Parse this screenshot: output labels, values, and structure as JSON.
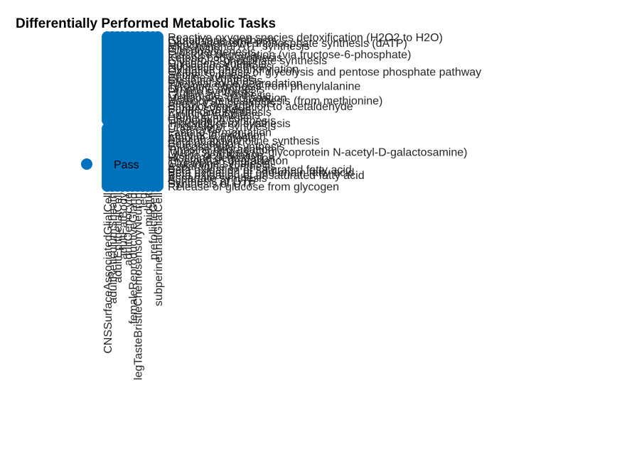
{
  "chart_data": {
    "type": "scatter",
    "title": "Differentially Performed Metabolic Tasks",
    "marker_color": "#0072BD",
    "legend": {
      "entries": [
        "Pass"
      ],
      "placement": "left"
    },
    "grid": false,
    "columns": [
      "CNSSurfaceAssociatedGlialCell",
      "adultReticulumSheath",
      "adultEpithelialCell",
      "adultFatBody",
      "adultOenocyte",
      "femaleReproductiveGland",
      "legTasteBristleChemosensoryNeuron",
      "leg",
      "midgut",
      "prefollicleCell",
      "subperineurialGlialCell"
    ],
    "tasks": [
      "Reactive oxygen species detoxification (H2O2 to H2O)",
      "Glutathione synthesis",
      "Deoxyadenosine triphosphate synthesis (dATP)",
      "Mitochondrial ATP synthesis",
      "Glycolysis",
      "Gluconeogenesis",
      "Fructose degradation (via fructose-6-phosphate)",
      "Ketone body synthesis",
      "Glycerol-3-phosphate synthesis",
      "Glycogen synthesis",
      "Nucleotide synthesis",
      "Oxidative phosphorylation",
      "Oxidative phase of glycolysis and pentose phosphate pathway",
      "Serine synthesis",
      "Glycine synthesis",
      "Cysteine synthesis",
      "Phenylalanine degradation",
      "Tyrosine synthesis from phenylalanine",
      "Ornithine synthesis",
      "Proline synthesis",
      "Glutamate synthesis",
      "Methionine degradation",
      "Homocysteine synthesis (from methionine)",
      "Acetyl-CoA synthesis",
      "Ethanol degradation to acetaldehyde",
      "Purine synthesis",
      "Pyrimidine synthesis",
      "Arginine synthesis",
      "Heme synthesis",
      "Ubiquinone synthesis",
      "Triacylglycerol synthesis",
      "Cholesterol synthesis",
      "Urea cycle",
      "Lactate fermentation",
      "Fatty acid oxidation",
      "Alanine synthesis",
      "Phosphatidylcholine synthesis",
      "Beta oxidation",
      "Glucosamine synthesis",
      "Tyrosine degradation",
      "Mucin synthesis (O-glycoprotein N-acetyl-D-galactosamine)",
      "Lysine degradation",
      "Histidine degradation",
      "Tryptophan degradation",
      "Glutamine synthesis",
      "Asparagine synthesis",
      "Beta oxidation of saturated fatty acid",
      "Beta oxidation of odd-chain fatty acid",
      "Beta oxidation of unsaturated fatty acid",
      "Aspartate synthesis",
      "Synthesis of GTP",
      "Synthesis of UTP",
      "Release of glucose from glycogen"
    ]
  }
}
